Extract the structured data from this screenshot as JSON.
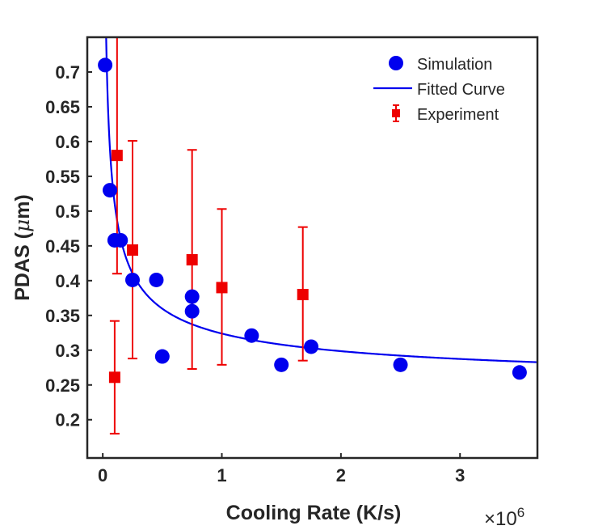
{
  "chart_data": {
    "type": "scatter",
    "xlabel": "Cooling Rate (K/s)",
    "ylabel_main": "PDAS (",
    "ylabel_mu": "μ",
    "ylabel_unit": "m)",
    "x_exponent_prefix": "×10",
    "x_exponent_power": "6",
    "xlim": [
      -0.13,
      3.65
    ],
    "ylim": [
      0.145,
      0.75
    ],
    "x_ticks": [
      0,
      1,
      2,
      3
    ],
    "x_tick_labels": [
      "0",
      "1",
      "2",
      "3"
    ],
    "y_ticks": [
      0.2,
      0.25,
      0.3,
      0.35,
      0.4,
      0.45,
      0.5,
      0.55,
      0.6,
      0.65,
      0.7
    ],
    "y_tick_labels": [
      "0.2",
      "0.25",
      "0.3",
      "0.35",
      "0.4",
      "0.45",
      "0.5",
      "0.55",
      "0.6",
      "0.65",
      "0.7"
    ],
    "legend_position": "top-right",
    "colors": {
      "simulation": "#0000ee",
      "fit": "#0000ee",
      "experiment": "#ee0000",
      "axes": "#262626"
    },
    "series": [
      {
        "name": "Simulation",
        "kind": "points",
        "x": [
          0.02,
          0.06,
          0.1,
          0.15,
          0.25,
          0.45,
          0.5,
          0.75,
          0.75,
          1.25,
          1.5,
          1.75,
          2.5,
          3.5
        ],
        "y": [
          0.71,
          0.53,
          0.458,
          0.458,
          0.401,
          0.401,
          0.291,
          0.377,
          0.356,
          0.321,
          0.279,
          0.305,
          0.279,
          0.268
        ]
      },
      {
        "name": "Fitted Curve",
        "kind": "line",
        "model": "y = a + b / sqrt(x)",
        "a": 0.2375,
        "b": 0.0864,
        "x_range": [
          0.005,
          3.65
        ]
      },
      {
        "name": "Experiment",
        "kind": "errorbar",
        "x": [
          0.1,
          0.12,
          0.25,
          0.75,
          1.0,
          1.68
        ],
        "y": [
          0.261,
          0.58,
          0.444,
          0.43,
          0.39,
          0.38
        ],
        "err_low": [
          0.081,
          0.17,
          0.156,
          0.157,
          0.111,
          0.095
        ],
        "err_high": [
          0.081,
          0.23,
          0.157,
          0.158,
          0.113,
          0.097
        ]
      }
    ]
  }
}
